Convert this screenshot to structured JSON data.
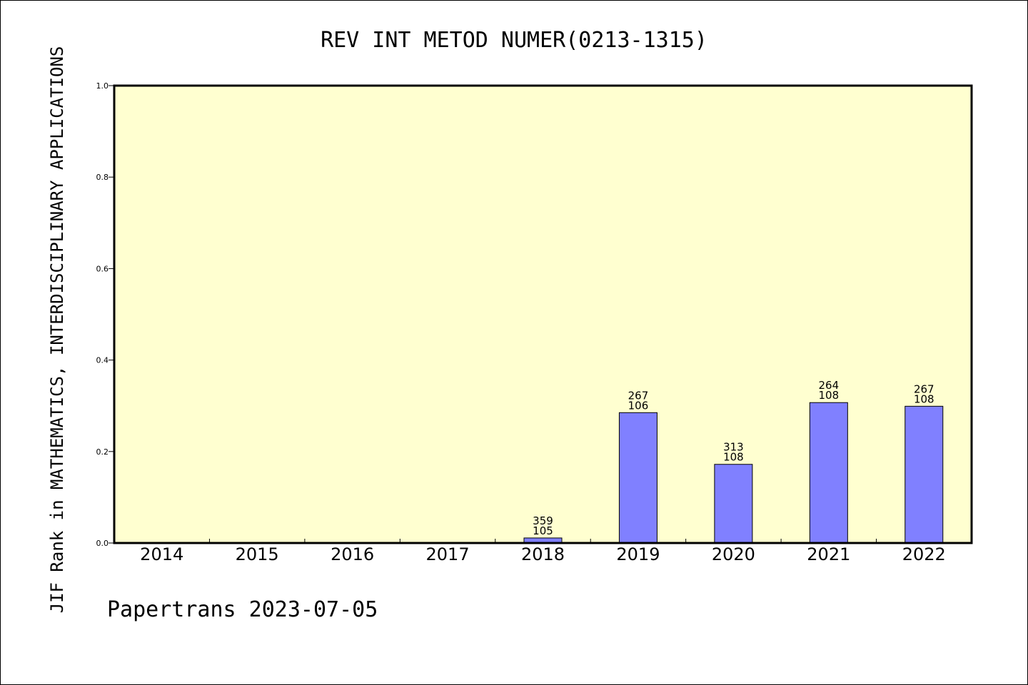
{
  "chart_data": {
    "type": "bar",
    "title": "REV INT METOD NUMER(0213-1315)",
    "ylabel": "JIF Rank in MATHEMATICS,  INTERDISCIPLINARY APPLICATIONS",
    "xlabel": "",
    "ylim": [
      0,
      1.0
    ],
    "yticks": [
      "0.0",
      "0.2",
      "0.4",
      "0.6",
      "0.8",
      "1.0"
    ],
    "categories": [
      "2014",
      "2015",
      "2016",
      "2017",
      "2018",
      "2019",
      "2020",
      "2021",
      "2022"
    ],
    "values": [
      null,
      null,
      null,
      null,
      0.011,
      0.285,
      0.172,
      0.307,
      0.299
    ],
    "rank_labels": [
      null,
      null,
      null,
      null,
      "105",
      "106",
      "108",
      "108",
      "108"
    ],
    "total_labels": [
      null,
      null,
      null,
      null,
      "359",
      "267",
      "313",
      "264",
      "267"
    ],
    "bar_color": "#8080ff",
    "plot_background": "#ffffd0",
    "grid": false,
    "legend": "none"
  },
  "footer": "Papertrans 2023-07-05"
}
